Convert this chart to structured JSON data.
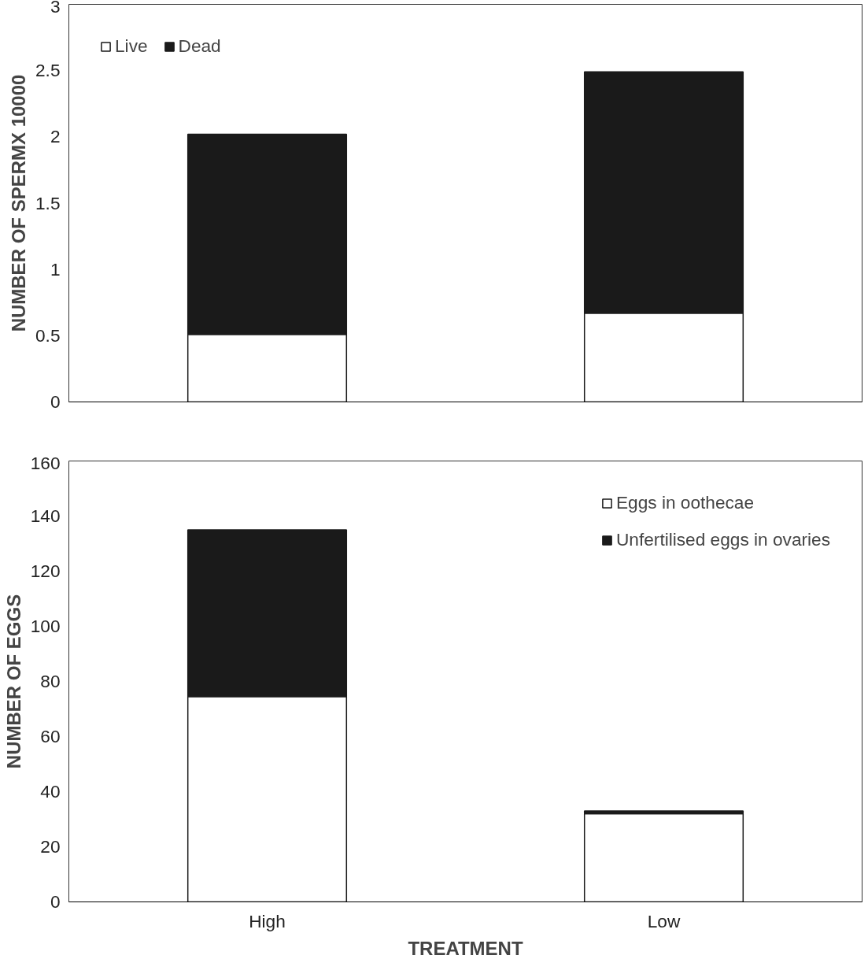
{
  "chart_data": [
    {
      "type": "bar",
      "stacked": true,
      "ylabel": "NUMBER OF SPERMX 10000",
      "categories": [
        null,
        null
      ],
      "ylim": [
        0,
        3
      ],
      "yticks": [
        0,
        0.5,
        1,
        1.5,
        2,
        2.5,
        3
      ],
      "grid": false,
      "legend": "top left",
      "series": [
        {
          "name": "Live",
          "color": "#ffffff",
          "values": [
            0.51,
            0.67
          ]
        },
        {
          "name": "Dead",
          "color": "#1a1a1a",
          "values": [
            1.51,
            1.82
          ]
        }
      ]
    },
    {
      "type": "bar",
      "stacked": true,
      "xlabel": "TREATMENT",
      "ylabel": "NUMBER OF EGGS",
      "categories": [
        "High",
        "Low"
      ],
      "ylim": [
        0,
        160
      ],
      "yticks": [
        0,
        20,
        40,
        60,
        80,
        100,
        120,
        140,
        160
      ],
      "grid": false,
      "legend": "top right",
      "series": [
        {
          "name": "Eggs in oothecae",
          "color": "#ffffff",
          "values": [
            74.5,
            32
          ]
        },
        {
          "name": "Unfertilised eggs in ovaries",
          "color": "#1a1a1a",
          "values": [
            60.5,
            1
          ]
        }
      ]
    }
  ]
}
